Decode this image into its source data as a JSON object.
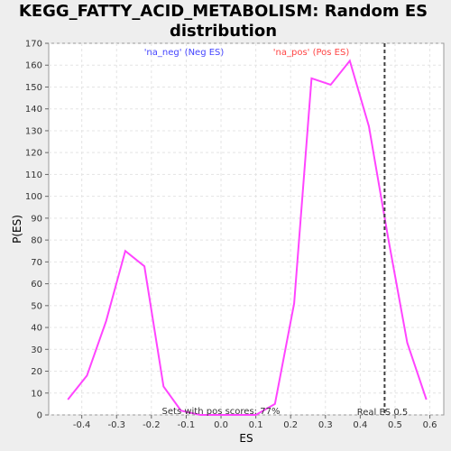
{
  "chart_data": {
    "type": "line",
    "title": "KEGG_FATTY_ACID_METABOLISM: Random ES distribution",
    "xlabel": "ES",
    "ylabel": "P(ES)",
    "xlim": [
      -0.495,
      0.64
    ],
    "ylim": [
      0,
      170
    ],
    "x_ticks": [
      "-0.4",
      "-0.3",
      "-0.2",
      "-0.1",
      "0.0",
      "0.1",
      "0.2",
      "0.3",
      "0.4",
      "0.5",
      "0.6"
    ],
    "y_ticks": [
      "0",
      "10",
      "20",
      "30",
      "40",
      "50",
      "60",
      "70",
      "80",
      "90",
      "100",
      "110",
      "120",
      "130",
      "140",
      "150",
      "160",
      "170"
    ],
    "grid": true,
    "series": [
      {
        "color": "#ff44ff",
        "x": [
          -0.44,
          -0.385,
          -0.33,
          -0.275,
          -0.22,
          -0.165,
          -0.115,
          -0.06,
          0.0,
          0.05,
          0.1,
          0.155,
          0.21,
          0.26,
          0.315,
          0.37,
          0.425,
          0.48,
          0.535,
          0.59
        ],
        "y": [
          7,
          18,
          43,
          75,
          68,
          13,
          2,
          0,
          0,
          0,
          0,
          5,
          51,
          154,
          151,
          162,
          132,
          81,
          33,
          7
        ]
      }
    ],
    "real_es": 0.47,
    "annotations": {
      "neg_label": "'na_neg' (Neg ES)",
      "pos_label": "'na_pos' (Pos ES)",
      "sets_text": "Sets with pos scores: 77%",
      "real_es_label": "Real ES 0.5"
    },
    "colors": {
      "line": "#ff44ff",
      "neg": "#4444ff",
      "pos": "#ff4444",
      "real_es_line": "#404040"
    }
  }
}
